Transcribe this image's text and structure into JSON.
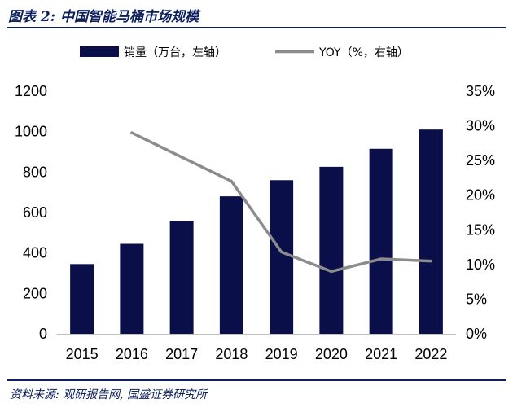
{
  "figure": {
    "title": "图表 2:  中国智能马桶市场规模",
    "source": "资料来源: 观研报告网, 国盛证券研究所"
  },
  "colors": {
    "bar": "#0a0f4a",
    "line": "#8c8c8c",
    "accent": "#0d1f5c"
  },
  "chart_data": {
    "type": "bar",
    "categories": [
      "2015",
      "2016",
      "2017",
      "2018",
      "2019",
      "2020",
      "2021",
      "2022"
    ],
    "series": [
      {
        "name": "销量（万台，左轴）",
        "type": "bar",
        "axis": "left",
        "values": [
          345,
          445,
          558,
          680,
          760,
          826,
          915,
          1010
        ]
      },
      {
        "name": "YOY（%，右轴）",
        "type": "line",
        "axis": "right",
        "values": [
          null,
          29.0,
          25.5,
          22.0,
          11.8,
          9.0,
          10.8,
          10.5
        ]
      }
    ],
    "y_left": {
      "ylim": [
        0,
        1200
      ],
      "ticks": [
        "0",
        "200",
        "400",
        "600",
        "800",
        "1000",
        "1200"
      ],
      "values": [
        0,
        200,
        400,
        600,
        800,
        1000,
        1200
      ]
    },
    "y_right": {
      "ylim": [
        0,
        35
      ],
      "ticks": [
        "0%",
        "5%",
        "10%",
        "15%",
        "20%",
        "25%",
        "30%",
        "35%"
      ],
      "values": [
        0,
        5,
        10,
        15,
        20,
        25,
        30,
        35
      ]
    },
    "legend": "top",
    "grid": false
  }
}
